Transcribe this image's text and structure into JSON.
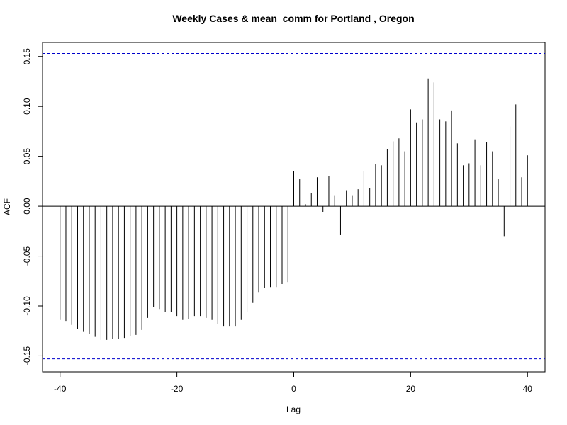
{
  "chart_data": {
    "type": "bar",
    "title": "Weekly Cases & mean_comm for Portland , Oregon",
    "xlabel": "Lag",
    "ylabel": "ACF",
    "xlim": [
      -43,
      43
    ],
    "ylim": [
      -0.166,
      0.164
    ],
    "x_ticks": [
      -40,
      -20,
      0,
      20,
      40
    ],
    "x_tick_labels": [
      "-40",
      "-20",
      "0",
      "20",
      "40"
    ],
    "y_ticks": [
      -0.15,
      -0.1,
      -0.05,
      0.0,
      0.05,
      0.1,
      0.15
    ],
    "y_tick_labels": [
      "-0.15",
      "-0.10",
      "-0.05",
      "0.00",
      "0.05",
      "0.10",
      "0.15"
    ],
    "confidence_bound": 0.153,
    "confidence_line_color": "#0000cc",
    "bar_color": "#000000",
    "x": [
      -40,
      -39,
      -38,
      -37,
      -36,
      -35,
      -34,
      -33,
      -32,
      -31,
      -30,
      -29,
      -28,
      -27,
      -26,
      -25,
      -24,
      -23,
      -22,
      -21,
      -20,
      -19,
      -18,
      -17,
      -16,
      -15,
      -14,
      -13,
      -12,
      -11,
      -10,
      -9,
      -8,
      -7,
      -6,
      -5,
      -4,
      -3,
      -2,
      -1,
      0,
      1,
      2,
      3,
      4,
      5,
      6,
      7,
      8,
      9,
      10,
      11,
      12,
      13,
      14,
      15,
      16,
      17,
      18,
      19,
      20,
      21,
      22,
      23,
      24,
      25,
      26,
      27,
      28,
      29,
      30,
      31,
      32,
      33,
      34,
      35,
      36,
      37,
      38,
      39,
      40
    ],
    "values": [
      -0.114,
      -0.115,
      -0.119,
      -0.123,
      -0.126,
      -0.128,
      -0.131,
      -0.134,
      -0.134,
      -0.133,
      -0.133,
      -0.132,
      -0.13,
      -0.129,
      -0.124,
      -0.112,
      -0.101,
      -0.103,
      -0.106,
      -0.106,
      -0.11,
      -0.114,
      -0.113,
      -0.11,
      -0.11,
      -0.112,
      -0.114,
      -0.118,
      -0.12,
      -0.12,
      -0.12,
      -0.114,
      -0.106,
      -0.097,
      -0.086,
      -0.082,
      -0.081,
      -0.081,
      -0.078,
      -0.076,
      0.035,
      0.027,
      0.002,
      0.013,
      0.029,
      -0.006,
      0.03,
      0.011,
      -0.029,
      0.016,
      0.011,
      0.017,
      0.035,
      0.018,
      0.042,
      0.041,
      0.057,
      0.065,
      0.068,
      0.055,
      0.097,
      0.084,
      0.087,
      0.128,
      0.124,
      0.087,
      0.085,
      0.096,
      0.063,
      0.041,
      0.043,
      0.067,
      0.041,
      0.064,
      0.055,
      0.027,
      -0.03,
      0.08,
      0.102,
      0.029,
      0.051
    ]
  }
}
